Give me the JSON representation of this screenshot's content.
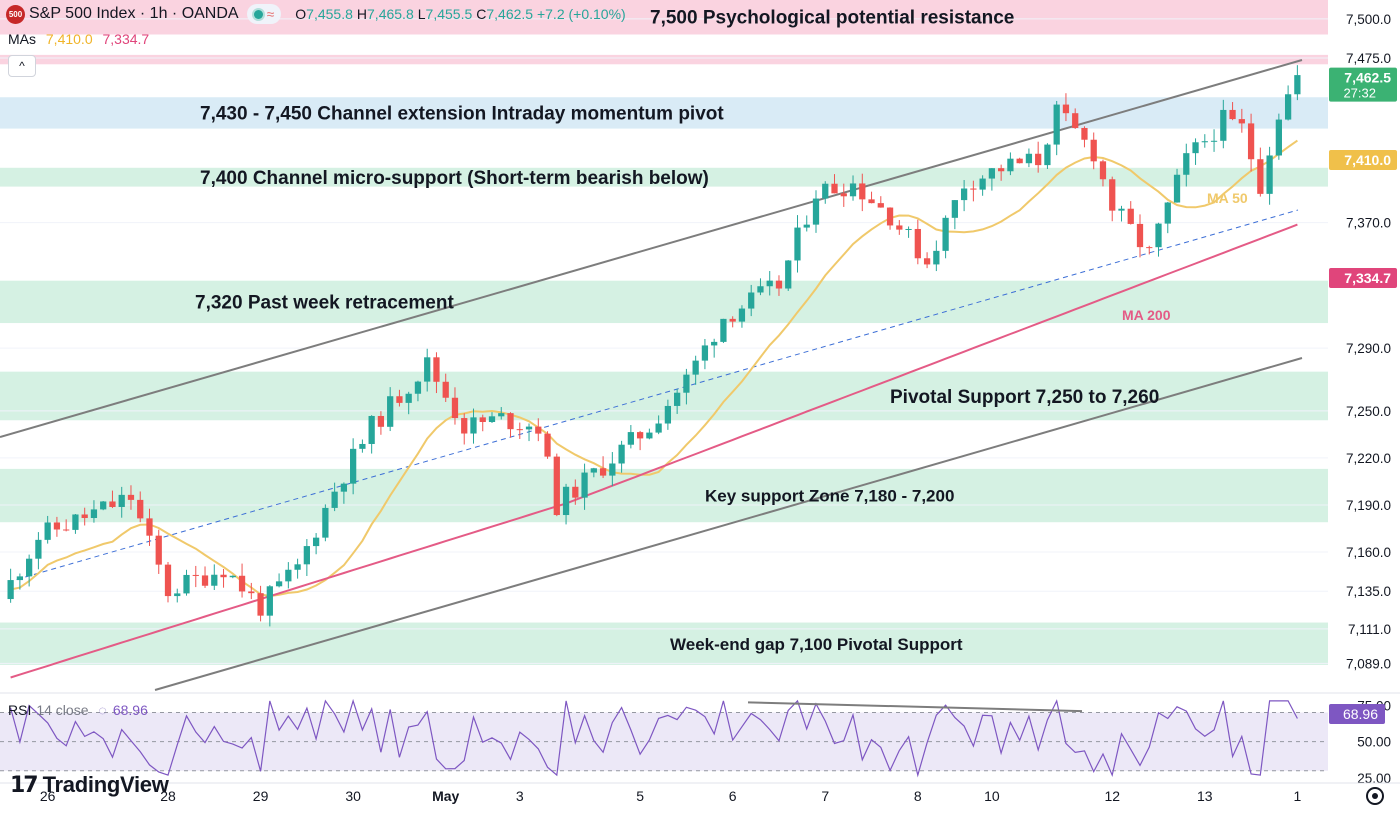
{
  "header": {
    "logo_text": "500",
    "title": "S&P 500 Index · 1h · OANDA",
    "wave_icon": "≈",
    "ohlc": [
      {
        "k": "O",
        "v": "7,455.8"
      },
      {
        "k": "H",
        "v": "7,465.8"
      },
      {
        "k": "L",
        "v": "7,455.5"
      },
      {
        "k": "C",
        "v": "7,462.5 +7.2 (+0.10%)"
      }
    ]
  },
  "mas": {
    "label": "MAs",
    "ma50": "7,410.0",
    "ma200": "7,334.7"
  },
  "collapse_icon": "^",
  "rsi": {
    "label": "RSI",
    "params": "14 close",
    "value": "68.96"
  },
  "branding": {
    "logo_mark": "17",
    "name": "TradingView"
  },
  "colors": {
    "up": "#26a69a",
    "down": "#ef5350",
    "ma50": "#f0c96b",
    "ma200": "#e45b86",
    "zone_green": "#d5f1e3",
    "zone_blue": "#d9ebf6",
    "zone_pink": "#fad3e0",
    "rsi": "#7e57c2",
    "rsi_band": "#ece8f7",
    "channel": "#7d7d7d",
    "mid": "#3d6fd6"
  },
  "chart_data": {
    "type": "candlestick",
    "timeframe": "1h",
    "y_range": [
      7072,
      7512
    ],
    "y_ticks": [
      {
        "v": 7500,
        "label": "7,500.0"
      },
      {
        "v": 7475,
        "label": "7,475.0"
      },
      {
        "v": 7370,
        "label": "7,370.0"
      },
      {
        "v": 7290,
        "label": "7,290.0"
      },
      {
        "v": 7250,
        "label": "7,250.0"
      },
      {
        "v": 7220,
        "label": "7,220.0"
      },
      {
        "v": 7190,
        "label": "7,190.0"
      },
      {
        "v": 7160,
        "label": "7,160.0"
      },
      {
        "v": 7135,
        "label": "7,135.0"
      },
      {
        "v": 7111,
        "label": "7,111.0"
      },
      {
        "v": 7089,
        "label": "7,089.0"
      }
    ],
    "x_ticks": [
      {
        "b": 4,
        "label": "26"
      },
      {
        "b": 17,
        "label": "28"
      },
      {
        "b": 27,
        "label": "29"
      },
      {
        "b": 37,
        "label": "30"
      },
      {
        "b": 47,
        "label": "May",
        "bold": true
      },
      {
        "b": 55,
        "label": "3"
      },
      {
        "b": 68,
        "label": "5"
      },
      {
        "b": 78,
        "label": "6"
      },
      {
        "b": 88,
        "label": "7"
      },
      {
        "b": 98,
        "label": "8"
      },
      {
        "b": 106,
        "label": "10"
      },
      {
        "b": 119,
        "label": "12"
      },
      {
        "b": 129,
        "label": "13"
      },
      {
        "b": 139,
        "label": "1"
      }
    ],
    "candles": [
      [
        7130,
        7160,
        7120,
        7155
      ],
      [
        7155,
        7175,
        7148,
        7168
      ],
      [
        7168,
        7180,
        7160,
        7170
      ],
      [
        7170,
        7185,
        7150,
        7158
      ],
      [
        7158,
        7190,
        7155,
        7185
      ],
      [
        7185,
        7188,
        7162,
        7165
      ],
      [
        7165,
        7178,
        7155,
        7172
      ],
      [
        7172,
        7180,
        7160,
        7165
      ],
      [
        7165,
        7175,
        7150,
        7170
      ],
      [
        7170,
        7182,
        7165,
        7175
      ],
      [
        7175,
        7185,
        7168,
        7180
      ],
      [
        7180,
        7190,
        7175,
        7188
      ],
      [
        7188,
        7198,
        7180,
        7192
      ],
      [
        7192,
        7200,
        7185,
        7195
      ],
      [
        7195,
        7198,
        7180,
        7185
      ],
      [
        7185,
        7190,
        7170,
        7175
      ],
      [
        7175,
        7180,
        7160,
        7165
      ],
      [
        7165,
        7170,
        7125,
        7135
      ],
      [
        7135,
        7150,
        7128,
        7145
      ],
      [
        7145,
        7160,
        7138,
        7155
      ],
      [
        7155,
        7165,
        7145,
        7160
      ],
      [
        7160,
        7168,
        7150,
        7162
      ],
      [
        7162,
        7170,
        7155,
        7158
      ],
      [
        7158,
        7165,
        7145,
        7150
      ],
      [
        7150,
        7158,
        7135,
        7140
      ],
      [
        7140,
        7150,
        7130,
        7145
      ],
      [
        7145,
        7155,
        7125,
        7130
      ],
      [
        7130,
        7150,
        7112,
        7145
      ],
      [
        7145,
        7180,
        7140,
        7175
      ],
      [
        7175,
        7185,
        7140,
        7148
      ],
      [
        7148,
        7160,
        7115,
        7125
      ],
      [
        7125,
        7150,
        7118,
        7145
      ],
      [
        7145,
        7175,
        7140,
        7170
      ],
      [
        7170,
        7200,
        7165,
        7195
      ],
      [
        7195,
        7230,
        7190,
        7225
      ],
      [
        7225,
        7240,
        7218,
        7235
      ],
      [
        7235,
        7245,
        7225,
        7230
      ],
      [
        7230,
        7235,
        7215,
        7225
      ],
      [
        7225,
        7250,
        7220,
        7245
      ],
      [
        7245,
        7285,
        7240,
        7270
      ],
      [
        7270,
        7280,
        7235,
        7245
      ],
      [
        7245,
        7255,
        7215,
        7240
      ],
      [
        7240,
        7250,
        7228,
        7235
      ],
      [
        7235,
        7248,
        7225,
        7242
      ],
      [
        7242,
        7250,
        7232,
        7238
      ],
      [
        7238,
        7245,
        7205,
        7215
      ],
      [
        7215,
        7225,
        7180,
        7190
      ],
      [
        7190,
        7205,
        7182,
        7200
      ],
      [
        7200,
        7210,
        7192,
        7205
      ],
      [
        7205,
        7212,
        7195,
        7208
      ],
      [
        7208,
        7220,
        7200,
        7215
      ],
      [
        7215,
        7225,
        7208,
        7220
      ],
      [
        7220,
        7235,
        7212,
        7230
      ],
      [
        7230,
        7245,
        7225,
        7240
      ],
      [
        7240,
        7260,
        7232,
        7255
      ],
      [
        7255,
        7275,
        7250,
        7270
      ],
      [
        7270,
        7305,
        7265,
        7300
      ],
      [
        7300,
        7310,
        7285,
        7290
      ],
      [
        7290,
        7300,
        7282,
        7295
      ],
      [
        7295,
        7330,
        7290,
        7325
      ],
      [
        7325,
        7350,
        7318,
        7345
      ],
      [
        7345,
        7375,
        7340,
        7370
      ],
      [
        7370,
        7385,
        7360,
        7375
      ],
      [
        7375,
        7385,
        7365,
        7378
      ],
      [
        7378,
        7388,
        7370,
        7380
      ],
      [
        7380,
        7392,
        7372,
        7388
      ],
      [
        7388,
        7392,
        7375,
        7380
      ],
      [
        7380,
        7395,
        7375,
        7390
      ],
      [
        7390,
        7394,
        7360,
        7365
      ],
      [
        7365,
        7372,
        7320,
        7325
      ],
      [
        7325,
        7345,
        7318,
        7340
      ],
      [
        7340,
        7355,
        7335,
        7350
      ],
      [
        7350,
        7362,
        7345,
        7358
      ],
      [
        7358,
        7372,
        7352,
        7368
      ],
      [
        7368,
        7385,
        7360,
        7380
      ],
      [
        7380,
        7398,
        7375,
        7392
      ],
      [
        7392,
        7402,
        7380,
        7395
      ],
      [
        7395,
        7400,
        7370,
        7378
      ],
      [
        7378,
        7392,
        7372,
        7388
      ],
      [
        7388,
        7396,
        7382,
        7390
      ],
      [
        7390,
        7398,
        7384,
        7392
      ],
      [
        7392,
        7395,
        7385,
        7390
      ],
      [
        7390,
        7420,
        7388,
        7415
      ],
      [
        7415,
        7425,
        7405,
        7410
      ],
      [
        7410,
        7418,
        7392,
        7400
      ],
      [
        7400,
        7405,
        7380,
        7385
      ],
      [
        7385,
        7392,
        7370,
        7380
      ],
      [
        7380,
        7390,
        7374,
        7386
      ],
      [
        7386,
        7390,
        7360,
        7368
      ],
      [
        7368,
        7375,
        7340,
        7345
      ],
      [
        7345,
        7375,
        7340,
        7370
      ],
      [
        7370,
        7400,
        7365,
        7395
      ],
      [
        7395,
        7412,
        7388,
        7405
      ],
      [
        7405,
        7418,
        7398,
        7410
      ],
      [
        7410,
        7415,
        7395,
        7400
      ],
      [
        7400,
        7415,
        7396,
        7412
      ],
      [
        7412,
        7430,
        7408,
        7425
      ],
      [
        7425,
        7432,
        7410,
        7415
      ],
      [
        7415,
        7420,
        7405,
        7410
      ],
      [
        7410,
        7424,
        7406,
        7420
      ],
      [
        7420,
        7440,
        7415,
        7435
      ],
      [
        7435,
        7445,
        7428,
        7440
      ],
      [
        7440,
        7448,
        7432,
        7442
      ],
      [
        7442,
        7450,
        7435,
        7445
      ],
      [
        7445,
        7455,
        7440,
        7452
      ],
      [
        7452,
        7458,
        7446,
        7450
      ],
      [
        7450,
        7462,
        7445,
        7458
      ],
      [
        7458,
        7466,
        7452,
        7462
      ]
    ],
    "candle_series_note": "",
    "ma50": [],
    "ma200": [],
    "zones": [
      {
        "top": 7513,
        "bottom": 7490,
        "color": "zone_pink",
        "label": "7,500 Psychological potential resistance",
        "label_x": 650,
        "label_size": 19,
        "label_bold": true
      },
      {
        "top": 7477,
        "bottom": 7471,
        "color": "zone_pink",
        "label": "",
        "label_x": 0,
        "label_size": 0,
        "label_bold": false
      },
      {
        "top": 7450,
        "bottom": 7430,
        "color": "zone_blue",
        "label": "7,430 - 7,450 Channel extension Intraday momentum pivot",
        "label_x": 200,
        "label_size": 19,
        "label_bold": true
      },
      {
        "top": 7405,
        "bottom": 7393,
        "color": "zone_green",
        "label": "7,400 Channel micro-support (Short-term bearish below)",
        "label_x": 200,
        "label_size": 19,
        "label_bold": true
      },
      {
        "top": 7333,
        "bottom": 7306,
        "color": "zone_green",
        "label": "7,320 Past week retracement",
        "label_x": 195,
        "label_size": 19,
        "label_bold": true
      },
      {
        "top": 7275,
        "bottom": 7244,
        "color": "zone_green",
        "label": "Pivotal Support 7,250 to 7,260",
        "label_x": 890,
        "label_size": 19,
        "label_bold": true
      },
      {
        "top": 7213,
        "bottom": 7179,
        "color": "zone_green",
        "label": "Key support Zone 7,180 - 7,200",
        "label_x": 705,
        "label_size": 17,
        "label_bold": true
      },
      {
        "top": 7115,
        "bottom": 7088,
        "color": "zone_green",
        "label": "Week-end gap 7,100 Pivotal Support",
        "label_x": 670,
        "label_size": 17,
        "label_bold": true
      }
    ],
    "ma_labels": [
      {
        "text": "MA 50",
        "color": "ma50"
      },
      {
        "text": "MA 200",
        "color": "ma200"
      }
    ],
    "price_tags": [
      {
        "v": 7462.5,
        "text": "7,462.5",
        "sub": "27:32",
        "color": "#3bb273"
      },
      {
        "v": 7410.0,
        "text": "7,410.0",
        "color": "#f0c04a"
      },
      {
        "v": 7334.7,
        "text": "7,334.7",
        "color": "#e0457b"
      }
    ],
    "rsi": {
      "y_range": [
        25,
        80
      ],
      "y_ticks": [
        {
          "v": 75,
          "label": "75.00"
        },
        {
          "v": 50,
          "label": "50.00"
        },
        {
          "v": 25,
          "label": "25.00"
        }
      ],
      "band": [
        30,
        70
      ],
      "last": "68.96"
    }
  }
}
